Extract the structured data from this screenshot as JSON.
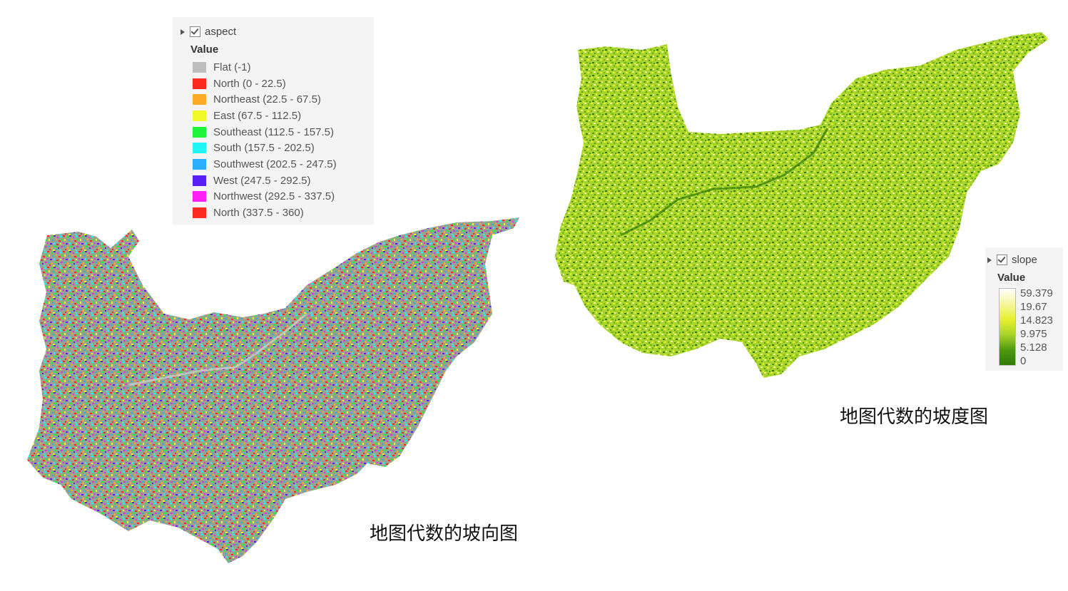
{
  "aspect_layer": {
    "name": "aspect",
    "value_header": "Value",
    "classes": [
      {
        "label": "Flat (-1)",
        "color": "#bdbdbd"
      },
      {
        "label": "North (0 - 22.5)",
        "color": "#ff2a1f"
      },
      {
        "label": "Northeast (22.5 - 67.5)",
        "color": "#ffab27"
      },
      {
        "label": "East (67.5 - 112.5)",
        "color": "#f1f92b"
      },
      {
        "label": "Southeast (112.5 - 157.5)",
        "color": "#1ff43a"
      },
      {
        "label": "South (157.5 - 202.5)",
        "color": "#1ff6f4"
      },
      {
        "label": "Southwest (202.5 - 247.5)",
        "color": "#2aaeff"
      },
      {
        "label": "West (247.5 - 292.5)",
        "color": "#5a1ff4"
      },
      {
        "label": "Northwest (292.5 - 337.5)",
        "color": "#ff1ff6"
      },
      {
        "label": "North (337.5 - 360)",
        "color": "#ff2a1f"
      }
    ],
    "caption": "地图代数的坡向图"
  },
  "slope_layer": {
    "name": "slope",
    "value_header": "Value",
    "ramp_labels": [
      "59.379",
      "19.67",
      "14.823",
      "9.975",
      "5.128",
      "0"
    ],
    "ramp_colors": [
      "#ffffff",
      "#f7f7a0",
      "#e8f030",
      "#a9d42a",
      "#4e9a10",
      "#2f7a05"
    ],
    "caption": "地图代数的坡度图"
  }
}
